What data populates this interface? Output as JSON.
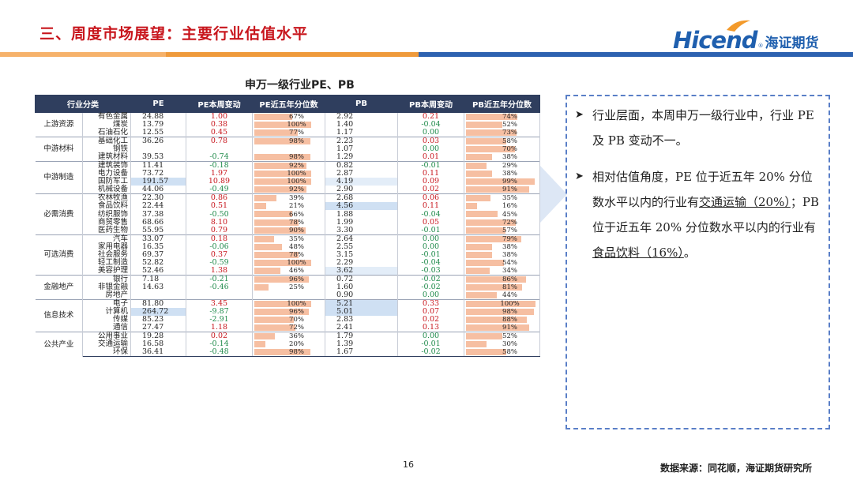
{
  "slide_title": "三、周度市场展望：主要行业估值水平",
  "logo": {
    "en": "Hicend",
    "reg": "®",
    "cn": "海证期货"
  },
  "table_title": "申万一级行业PE、PB",
  "headers": [
    "行业分类",
    "PE",
    "PE本周变动",
    "PE近五年分位数",
    "PB",
    "PB本周变动",
    "PB近五年分位数"
  ],
  "chart_data": {
    "type": "table",
    "title": "申万一级行业PE、PB",
    "columns": [
      "行业分类",
      "行业",
      "PE",
      "PE本周变动",
      "PE近五年分位数",
      "PB",
      "PB本周变动",
      "PB近五年分位数"
    ],
    "groups": [
      {
        "name": "上游资源",
        "rows": [
          {
            "ind": "有色金属",
            "pe": "24.88",
            "pe_chg": "1.00",
            "pe_pct": 67,
            "pb": "2.92",
            "pb_chg": "0.21",
            "pb_pct": 74
          },
          {
            "ind": "煤炭",
            "pe": "13.79",
            "pe_chg": "0.38",
            "pe_pct": 100,
            "pb": "1.40",
            "pb_chg": "-0.04",
            "pb_pct": 52
          },
          {
            "ind": "石油石化",
            "pe": "12.55",
            "pe_chg": "0.45",
            "pe_pct": 77,
            "pb": "1.17",
            "pb_chg": "0.00",
            "pb_pct": 73
          }
        ]
      },
      {
        "name": "中游材料",
        "rows": [
          {
            "ind": "基础化工",
            "pe": "36.26",
            "pe_chg": "0.78",
            "pe_pct": 98,
            "pb": "2.23",
            "pb_chg": "0.03",
            "pb_pct": 58
          },
          {
            "ind": "钢铁",
            "pe": "",
            "pe_chg": "",
            "pe_pct": null,
            "pb": "1.07",
            "pb_chg": "0.00",
            "pb_pct": 70
          },
          {
            "ind": "建筑材料",
            "pe": "39.53",
            "pe_chg": "-0.74",
            "pe_pct": 98,
            "pb": "1.29",
            "pb_chg": "0.01",
            "pb_pct": 38
          }
        ]
      },
      {
        "name": "中游制造",
        "rows": [
          {
            "ind": "建筑装饰",
            "pe": "11.41",
            "pe_chg": "-0.18",
            "pe_pct": 92,
            "pb": "0.82",
            "pb_chg": "-0.01",
            "pb_pct": 29
          },
          {
            "ind": "电力设备",
            "pe": "73.72",
            "pe_chg": "1.97",
            "pe_pct": 100,
            "pb": "2.87",
            "pb_chg": "0.11",
            "pb_pct": 38
          },
          {
            "ind": "国防军工",
            "pe": "191.57",
            "pe_chg": "10.89",
            "pe_pct": 100,
            "pb": "4.19",
            "pb_chg": "0.09",
            "pb_pct": 99
          },
          {
            "ind": "机械设备",
            "pe": "44.06",
            "pe_chg": "-0.49",
            "pe_pct": 92,
            "pb": "2.90",
            "pb_chg": "0.02",
            "pb_pct": 91
          }
        ]
      },
      {
        "name": "必需消费",
        "rows": [
          {
            "ind": "农林牧渔",
            "pe": "22.30",
            "pe_chg": "0.86",
            "pe_pct": 39,
            "pb": "2.68",
            "pb_chg": "0.06",
            "pb_pct": 35
          },
          {
            "ind": "食品饮料",
            "pe": "22.44",
            "pe_chg": "0.51",
            "pe_pct": 21,
            "pb": "4.56",
            "pb_chg": "0.11",
            "pb_pct": 16
          },
          {
            "ind": "纺织服饰",
            "pe": "37.38",
            "pe_chg": "-0.50",
            "pe_pct": 66,
            "pb": "1.88",
            "pb_chg": "-0.04",
            "pb_pct": 45
          },
          {
            "ind": "商贸零售",
            "pe": "68.66",
            "pe_chg": "8.10",
            "pe_pct": 78,
            "pb": "1.99",
            "pb_chg": "0.05",
            "pb_pct": 72
          },
          {
            "ind": "医药生物",
            "pe": "55.95",
            "pe_chg": "0.79",
            "pe_pct": 90,
            "pb": "3.30",
            "pb_chg": "-0.01",
            "pb_pct": 57
          }
        ]
      },
      {
        "name": "可选消费",
        "rows": [
          {
            "ind": "汽车",
            "pe": "33.07",
            "pe_chg": "0.18",
            "pe_pct": 35,
            "pb": "2.64",
            "pb_chg": "0.00",
            "pb_pct": 79
          },
          {
            "ind": "家用电器",
            "pe": "16.35",
            "pe_chg": "-0.06",
            "pe_pct": 48,
            "pb": "2.55",
            "pb_chg": "0.00",
            "pb_pct": 38
          },
          {
            "ind": "社会服务",
            "pe": "69.37",
            "pe_chg": "0.37",
            "pe_pct": 78,
            "pb": "3.15",
            "pb_chg": "-0.01",
            "pb_pct": 38
          },
          {
            "ind": "轻工制造",
            "pe": "52.82",
            "pe_chg": "-0.59",
            "pe_pct": 100,
            "pb": "2.29",
            "pb_chg": "-0.04",
            "pb_pct": 54
          },
          {
            "ind": "美容护理",
            "pe": "52.46",
            "pe_chg": "1.38",
            "pe_pct": 46,
            "pb": "3.62",
            "pb_chg": "-0.03",
            "pb_pct": 34
          }
        ]
      },
      {
        "name": "金融地产",
        "rows": [
          {
            "ind": "银行",
            "pe": "7.18",
            "pe_chg": "-0.21",
            "pe_pct": 96,
            "pb": "0.72",
            "pb_chg": "-0.02",
            "pb_pct": 86
          },
          {
            "ind": "非银金融",
            "pe": "14.63",
            "pe_chg": "-0.46",
            "pe_pct": 25,
            "pb": "1.60",
            "pb_chg": "-0.02",
            "pb_pct": 81
          },
          {
            "ind": "房地产",
            "pe": "",
            "pe_chg": "",
            "pe_pct": null,
            "pb": "0.90",
            "pb_chg": "0.00",
            "pb_pct": 44
          }
        ]
      },
      {
        "name": "信息技术",
        "rows": [
          {
            "ind": "电子",
            "pe": "81.80",
            "pe_chg": "3.45",
            "pe_pct": 100,
            "pb": "5.21",
            "pb_chg": "0.33",
            "pb_pct": 100
          },
          {
            "ind": "计算机",
            "pe": "264.72",
            "pe_chg": "-9.87",
            "pe_pct": 96,
            "pb": "5.01",
            "pb_chg": "0.07",
            "pb_pct": 98
          },
          {
            "ind": "传媒",
            "pe": "85.23",
            "pe_chg": "-2.91",
            "pe_pct": 70,
            "pb": "2.83",
            "pb_chg": "0.02",
            "pb_pct": 88
          },
          {
            "ind": "通信",
            "pe": "27.47",
            "pe_chg": "1.18",
            "pe_pct": 72,
            "pb": "2.41",
            "pb_chg": "0.13",
            "pb_pct": 91
          }
        ]
      },
      {
        "name": "公共产业",
        "rows": [
          {
            "ind": "公用事业",
            "pe": "19.28",
            "pe_chg": "0.02",
            "pe_pct": 36,
            "pb": "1.79",
            "pb_chg": "0.00",
            "pb_pct": 52
          },
          {
            "ind": "交通运输",
            "pe": "16.58",
            "pe_chg": "-0.14",
            "pe_pct": 20,
            "pb": "1.39",
            "pb_chg": "-0.01",
            "pb_pct": 30
          },
          {
            "ind": "环保",
            "pe": "36.41",
            "pe_chg": "-0.48",
            "pe_pct": 98,
            "pb": "1.67",
            "pb_chg": "-0.02",
            "pb_pct": 58
          }
        ]
      }
    ],
    "colors": {
      "header_bg": "#2f3e5e",
      "bar": "#f6bfa2",
      "positive": "#c8161d",
      "negative": "#1e8a4a",
      "highlight": "#cfe0f3"
    }
  },
  "commentary": {
    "bullet1": "行业层面，本周申万一级行业中，行业 PE 及 PB 变动不一。",
    "bullet2_a": "相对估值角度，PE 位于近五年 20% 分位数水平以内的行业有",
    "bullet2_u1": "交通运输（20%）",
    "bullet2_b": "；PB 位于近五年 20% 分位数水平以内的行业有",
    "bullet2_u2": "食品饮料（16%）",
    "bullet2_c": "。",
    "marker": "➤"
  },
  "page_number": "16",
  "source": "数据来源：同花顺，海证期货研究所"
}
